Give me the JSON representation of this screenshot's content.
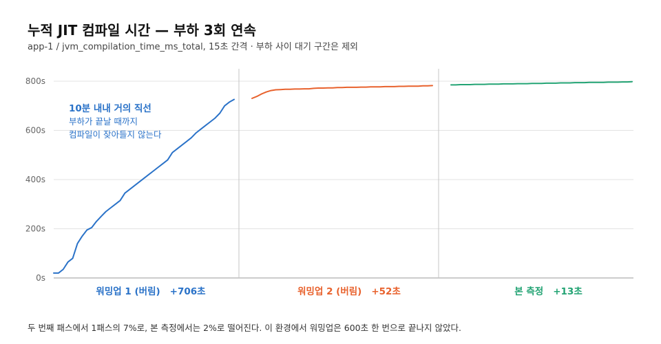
{
  "title": "누적 JIT 컴파일 시간 — 부하 3회 연속",
  "subtitle": "app-1 / jvm_compilation_time_ms_total, 15초 간격 · 부하 사이 대기 구간은 제외",
  "footnote": "두 번째 패스에서 1패스의 7%로, 본 측정에서는 2%로 떨어진다. 이 환경에서 워밍업은 600초 한 번으로 끝나지 않았다.",
  "colors": {
    "warmup1": "#2a72c8",
    "warmup2": "#e8612c",
    "measure": "#22a373",
    "grid": "#e3e3e3",
    "divider": "#c4c4c4",
    "axis": "#999999"
  },
  "chart_data": {
    "type": "line",
    "y_unit": "s",
    "ylim": [
      0,
      800
    ],
    "yticks": [
      "0s",
      "200s",
      "400s",
      "600s",
      "800s"
    ],
    "ytick_values": [
      0,
      200,
      400,
      600,
      800
    ],
    "grid": true,
    "annotation": {
      "heading": "10분 내내 거의 직선",
      "lines": [
        "부하가 끝날 때까지",
        "컴파일이 잦아들지 않는다"
      ]
    },
    "series": [
      {
        "name": "워밍업 1",
        "label_suffix": "(버림)",
        "delta": "+706초",
        "color": "#2a72c8",
        "values": [
          20,
          20,
          35,
          65,
          80,
          140,
          170,
          195,
          205,
          230,
          250,
          270,
          285,
          300,
          315,
          345,
          360,
          375,
          390,
          405,
          420,
          435,
          450,
          465,
          480,
          510,
          525,
          540,
          555,
          570,
          590,
          605,
          620,
          635,
          650,
          670,
          700,
          715,
          726
        ]
      },
      {
        "name": "워밍업 2",
        "label_suffix": "(버림)",
        "delta": "+52초",
        "color": "#e8612c",
        "values": [
          730,
          738,
          748,
          756,
          762,
          765,
          766,
          767,
          767,
          768,
          768,
          769,
          769,
          771,
          772,
          772,
          773,
          773,
          774,
          774,
          775,
          775,
          775,
          776,
          776,
          777,
          777,
          777,
          778,
          778,
          778,
          779,
          779,
          780,
          780,
          780,
          781,
          781,
          782
        ]
      },
      {
        "name": "본 측정",
        "label_suffix": "",
        "delta": "+13초",
        "color": "#22a373",
        "values": [
          785,
          785,
          786,
          786,
          786,
          787,
          787,
          787,
          788,
          788,
          788,
          789,
          789,
          789,
          790,
          790,
          790,
          791,
          791,
          791,
          792,
          792,
          792,
          793,
          793,
          793,
          794,
          794,
          794,
          795,
          795,
          795,
          795,
          796,
          796,
          796,
          797,
          797,
          798
        ]
      }
    ]
  }
}
